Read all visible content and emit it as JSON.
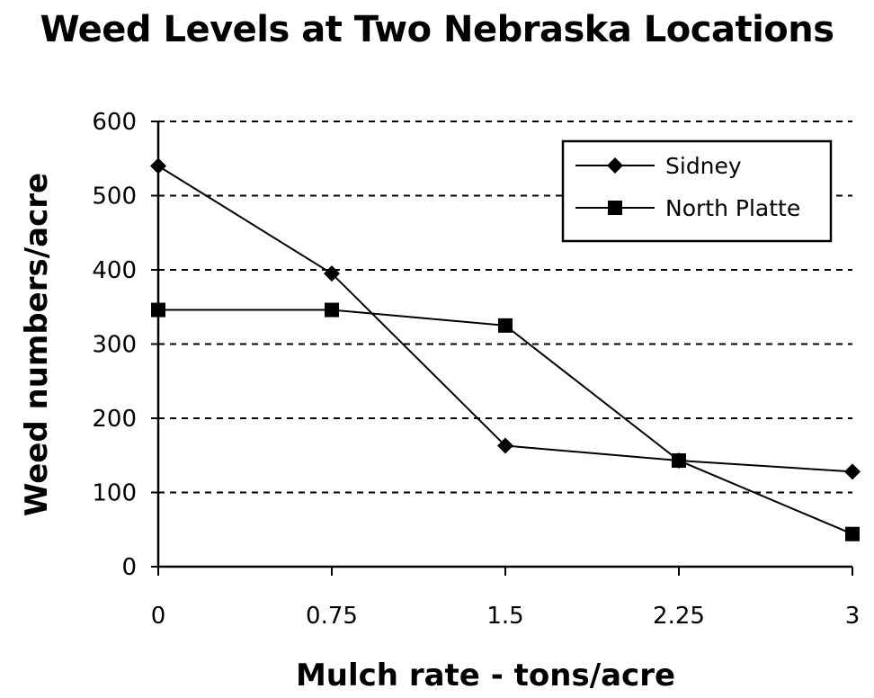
{
  "chart_data": {
    "type": "line",
    "title": "Weed Levels at Two Nebraska Locations",
    "xlabel": "Mulch rate - tons/acre",
    "ylabel": "Weed numbers/acre",
    "categories": [
      "0",
      "0.75",
      "1.5",
      "2.25",
      "3"
    ],
    "x": [
      0,
      0.75,
      1.5,
      2.25,
      3
    ],
    "ylim": [
      0,
      600
    ],
    "yticks": [
      "0",
      "100",
      "200",
      "300",
      "400",
      "500",
      "600"
    ],
    "grid": "horizontal dashed",
    "legend_position": "top-right",
    "series": [
      {
        "name": "Sidney",
        "marker": "diamond",
        "values": [
          540,
          395,
          163,
          143,
          128
        ]
      },
      {
        "name": "North Platte",
        "marker": "square",
        "values": [
          346,
          346,
          325,
          143,
          44
        ]
      }
    ]
  }
}
